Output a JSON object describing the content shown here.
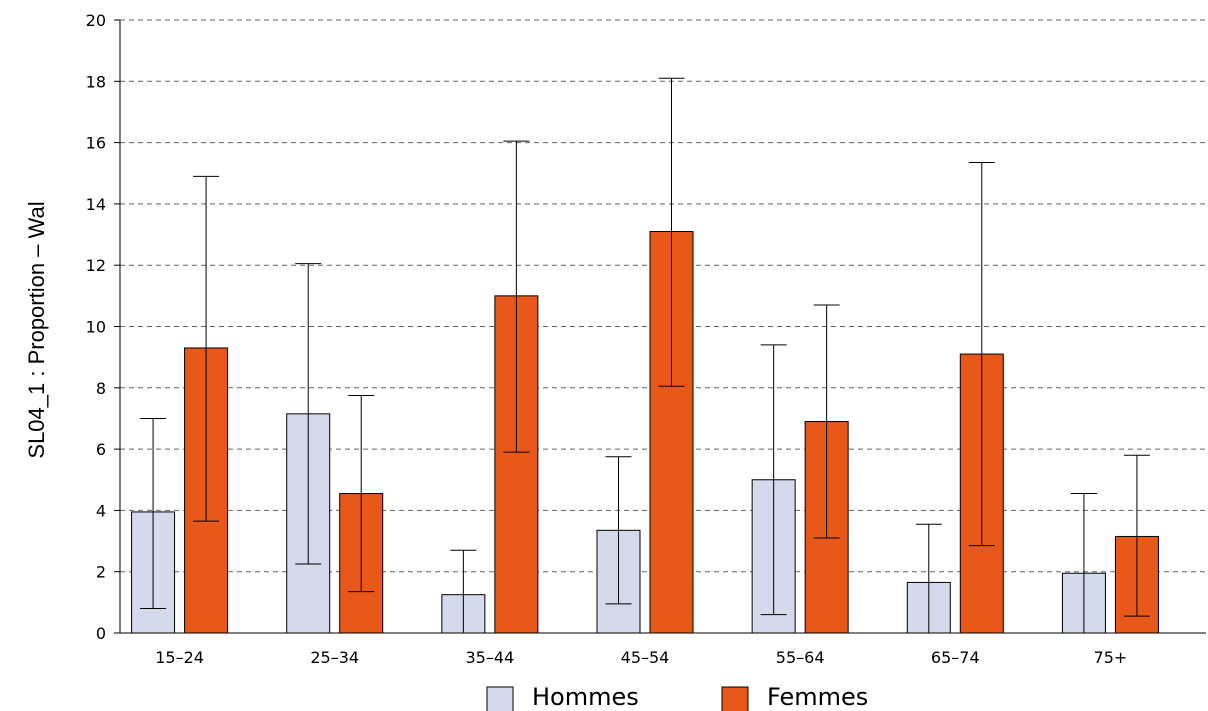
{
  "chart_data": {
    "type": "bar",
    "title": "",
    "xlabel": "",
    "ylabel": "SL04_1 : Proportion – Wal",
    "ylim": [
      0,
      20
    ],
    "yticks": [
      0,
      2,
      4,
      6,
      8,
      10,
      12,
      14,
      16,
      18,
      20
    ],
    "grid": true,
    "legend_position": "bottom",
    "categories": [
      "15–24",
      "25–34",
      "35–44",
      "45–54",
      "55–64",
      "65–74",
      "75+"
    ],
    "series": [
      {
        "name": "Hommes",
        "color": "#d5d9ec",
        "values": [
          3.95,
          7.15,
          1.25,
          3.35,
          5.0,
          1.65,
          1.95
        ],
        "ci_low": [
          0.8,
          2.25,
          0.0,
          0.95,
          0.6,
          0.0,
          0.0
        ],
        "ci_high": [
          7.0,
          12.05,
          2.7,
          5.75,
          9.4,
          3.55,
          4.55
        ]
      },
      {
        "name": "Femmes",
        "color": "#e8581a",
        "values": [
          9.3,
          4.55,
          11.0,
          13.1,
          6.9,
          9.1,
          3.15
        ],
        "ci_low": [
          3.65,
          1.35,
          5.9,
          8.05,
          3.1,
          2.85,
          0.55
        ],
        "ci_high": [
          14.9,
          7.75,
          16.05,
          18.1,
          10.7,
          15.35,
          5.8
        ]
      }
    ]
  }
}
